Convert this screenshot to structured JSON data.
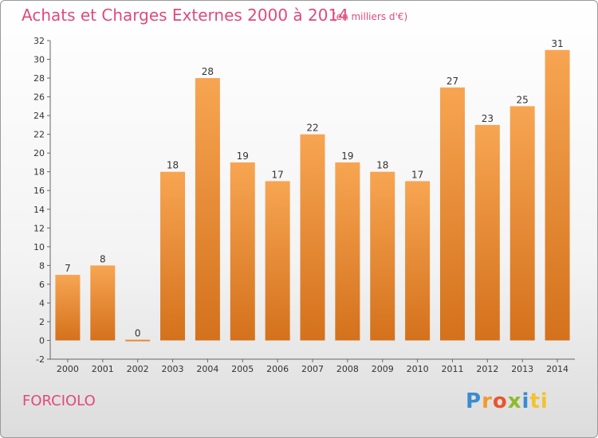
{
  "header": {
    "title": "Achats et Charges Externes 2000 à 2014",
    "subtitle": "(en milliers d'€)"
  },
  "footer": {
    "place": "FORCIOLO",
    "logo": [
      "P",
      "r",
      "o",
      "x",
      "i",
      "ti"
    ]
  },
  "colors": {
    "accent": "#e04a7a",
    "bar_light": "#f7a552",
    "bar_dark": "#d4711c"
  },
  "chart_data": {
    "type": "bar",
    "categories": [
      "2000",
      "2001",
      "2002",
      "2003",
      "2004",
      "2005",
      "2006",
      "2007",
      "2008",
      "2009",
      "2010",
      "2011",
      "2012",
      "2013",
      "2014"
    ],
    "values": [
      7,
      8,
      0,
      18,
      28,
      19,
      17,
      22,
      19,
      18,
      17,
      27,
      23,
      25,
      31
    ],
    "ylim": [
      -2,
      32
    ],
    "yticks": [
      -2,
      0,
      2,
      4,
      6,
      8,
      10,
      12,
      14,
      16,
      18,
      20,
      22,
      24,
      26,
      28,
      30,
      32
    ],
    "grid": false,
    "data_labels": true
  }
}
